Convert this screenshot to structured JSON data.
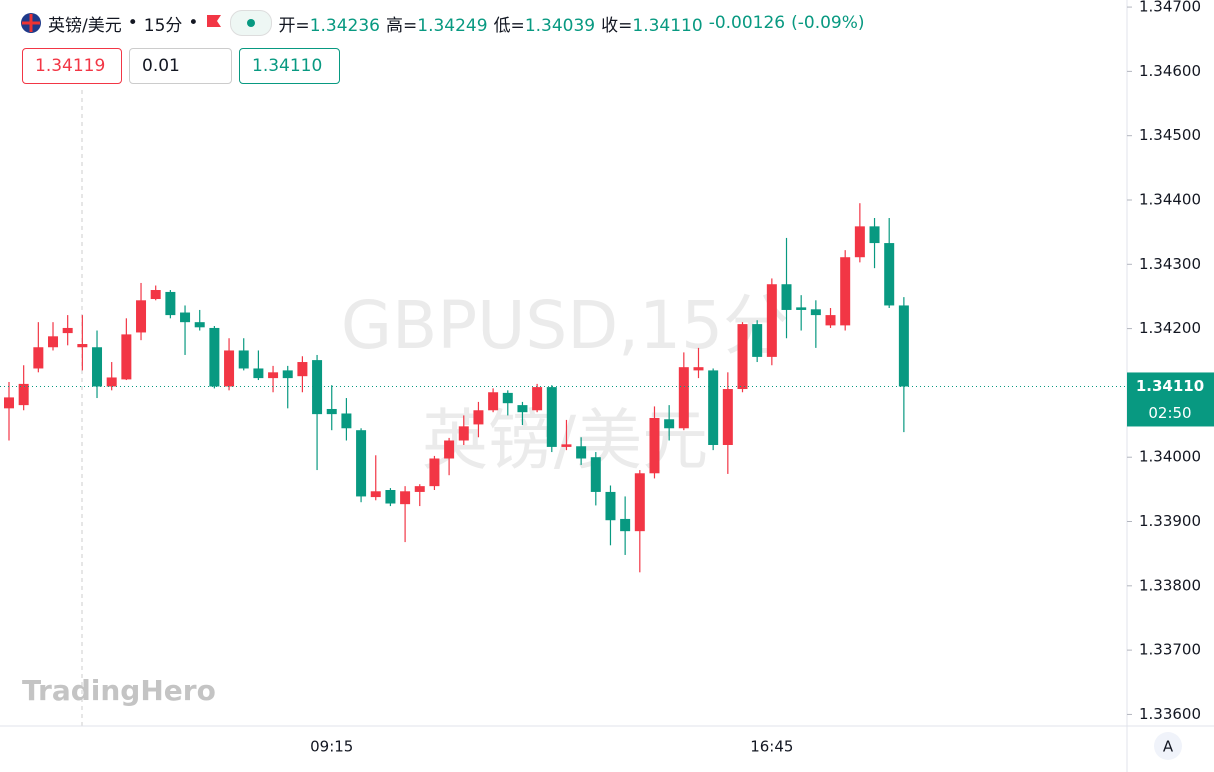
{
  "header": {
    "symbol": "英镑/美元",
    "interval": "15分",
    "open_label": "开=",
    "open": "1.34236",
    "high_label": "高=",
    "high": "1.34249",
    "low_label": "低=",
    "low": "1.34039",
    "close_label": "收=",
    "close": "1.34110",
    "change": "-0.00126",
    "change_pct": "(-0.09%)"
  },
  "order": {
    "sell": "1.34119",
    "qty": "0.01",
    "buy": "1.34110"
  },
  "watermark": {
    "line1": "GBPUSD,15分",
    "line2": "英镑/美元"
  },
  "logo": "TradingHero",
  "scale_button": "A",
  "chart_data": {
    "type": "candlestick",
    "categories": [
      null,
      null,
      null,
      null,
      null,
      null,
      null,
      null,
      null,
      null,
      null,
      null,
      null,
      null,
      null,
      null,
      null,
      null,
      null,
      null,
      null,
      null,
      "09:15",
      null,
      null,
      null,
      null,
      null,
      null,
      null,
      null,
      null,
      null,
      null,
      null,
      null,
      null,
      null,
      null,
      null,
      null,
      null,
      null,
      null,
      null,
      null,
      null,
      null,
      null,
      null,
      null,
      null,
      "16:45",
      null,
      null,
      null,
      null,
      null,
      null,
      null,
      null,
      null
    ],
    "open": [
      1.34076,
      1.34081,
      1.34138,
      1.34171,
      1.34193,
      1.34171,
      1.34171,
      1.3411,
      1.34121,
      1.34194,
      1.34246,
      1.34257,
      1.34225,
      1.3421,
      1.34201,
      1.3411,
      1.34166,
      1.34138,
      1.34123,
      1.34135,
      1.34126,
      1.34151,
      1.34075,
      1.34068,
      1.34042,
      1.33938,
      1.33949,
      1.33927,
      1.33946,
      1.33955,
      1.33998,
      1.34026,
      1.34051,
      1.34073,
      1.341,
      1.34081,
      1.34073,
      1.34109,
      1.34016,
      1.34017,
      1.34,
      1.33946,
      1.33904,
      1.33885,
      1.33975,
      1.34059,
      1.34045,
      1.34135,
      1.34135,
      1.34019,
      1.34106,
      1.34207,
      1.34156,
      1.34269,
      1.34233,
      1.3423,
      1.34205,
      1.34205,
      1.34311,
      1.34359,
      1.34333,
      1.34236
    ],
    "high": [
      1.34117,
      1.34143,
      1.3421,
      1.3421,
      1.34221,
      1.34221,
      1.34197,
      1.34148,
      1.34216,
      1.34271,
      1.34267,
      1.3426,
      1.34236,
      1.34229,
      1.34204,
      1.34185,
      1.34185,
      1.34166,
      1.34142,
      1.34142,
      1.34157,
      1.34159,
      1.34112,
      1.34092,
      1.34045,
      1.34003,
      1.33952,
      1.33955,
      1.33958,
      1.34002,
      1.3403,
      1.34065,
      1.34086,
      1.34107,
      1.34104,
      1.34086,
      1.34114,
      1.34112,
      1.34058,
      1.34031,
      1.34008,
      1.33956,
      1.33939,
      1.3398,
      1.34079,
      1.34081,
      1.34163,
      1.3417,
      1.34138,
      1.34132,
      1.3421,
      1.34213,
      1.34278,
      1.34341,
      1.34252,
      1.34244,
      1.34232,
      1.34322,
      1.34395,
      1.34372,
      1.34372,
      1.34249
    ],
    "low": [
      1.34026,
      1.34073,
      1.34132,
      1.34166,
      1.34174,
      1.34135,
      1.34092,
      1.34104,
      1.3412,
      1.34182,
      1.34244,
      1.34216,
      1.34159,
      1.34197,
      1.34107,
      1.34104,
      1.34135,
      1.3412,
      1.34101,
      1.34076,
      1.34101,
      1.3398,
      1.34042,
      1.34026,
      1.3393,
      1.33933,
      1.33924,
      1.33868,
      1.33924,
      1.33949,
      1.33972,
      1.34019,
      1.34031,
      1.3407,
      1.34065,
      1.3405,
      1.3407,
      1.34008,
      1.34011,
      1.33988,
      1.33925,
      1.33863,
      1.33848,
      1.33821,
      1.33967,
      1.34026,
      1.34042,
      1.34123,
      1.34011,
      1.33974,
      1.34101,
      1.34148,
      1.34143,
      1.34185,
      1.34197,
      1.3417,
      1.34201,
      1.34197,
      1.34303,
      1.34294,
      1.34232,
      1.34039
    ],
    "close": [
      1.34093,
      1.34114,
      1.34171,
      1.34188,
      1.34201,
      1.34176,
      1.3411,
      1.34124,
      1.34191,
      1.34244,
      1.3426,
      1.34221,
      1.3421,
      1.34202,
      1.3411,
      1.34166,
      1.34138,
      1.34123,
      1.34132,
      1.34123,
      1.34148,
      1.34067,
      1.34067,
      1.34045,
      1.33939,
      1.33947,
      1.33928,
      1.33947,
      1.33955,
      1.33998,
      1.34026,
      1.34048,
      1.34073,
      1.34101,
      1.34084,
      1.3407,
      1.34109,
      1.34016,
      1.3402,
      1.33998,
      1.33946,
      1.33902,
      1.33885,
      1.33975,
      1.34061,
      1.34045,
      1.3414,
      1.3414,
      1.34019,
      1.34106,
      1.34207,
      1.34156,
      1.34269,
      1.34229,
      1.34229,
      1.34221,
      1.34221,
      1.34311,
      1.34359,
      1.34333,
      1.34236,
      1.3411
    ],
    "up_color": "#f23645",
    "down_color": "#089981",
    "ylim": [
      1.33582,
      1.34711
    ],
    "yticks": [
      {
        "value": 1.336,
        "label": "1.33600"
      },
      {
        "value": 1.337,
        "label": "1.33700"
      },
      {
        "value": 1.338,
        "label": "1.33800"
      },
      {
        "value": 1.339,
        "label": "1.33900"
      },
      {
        "value": 1.34,
        "label": "1.34000"
      },
      {
        "value": 1.341,
        "label": "1.34100"
      },
      {
        "value": 1.342,
        "label": "1.34200"
      },
      {
        "value": 1.343,
        "label": "1.34300"
      },
      {
        "value": 1.344,
        "label": "1.34400"
      },
      {
        "value": 1.345,
        "label": "1.34500"
      },
      {
        "value": 1.346,
        "label": "1.34600"
      },
      {
        "value": 1.347,
        "label": "1.34700"
      }
    ],
    "last_price": {
      "value": 1.3411,
      "label": "1.34110"
    },
    "countdown": "02:50"
  }
}
